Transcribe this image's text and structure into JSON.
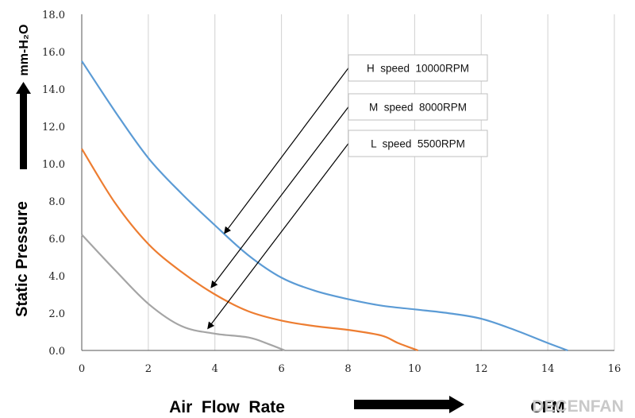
{
  "chart_data": {
    "type": "line",
    "xlim": [
      0,
      16
    ],
    "ylim": [
      0,
      18
    ],
    "x_ticks": [
      "0",
      "2",
      "4",
      "6",
      "8",
      "10",
      "12",
      "14",
      "16"
    ],
    "y_ticks": [
      "0.0",
      "2.0",
      "4.0",
      "6.0",
      "8.0",
      "10.0",
      "12.0",
      "14.0",
      "16.0",
      "18.0"
    ],
    "grid": "vertical",
    "xlabel": "Air  Flow  Rate",
    "x_unit": "CFM",
    "ylabel": "Static  Pressure",
    "y_unit": "mm-H₂O",
    "series": [
      {
        "name": "H  speed  10000RPM",
        "color": "#5b9bd5",
        "x": [
          0,
          1,
          2,
          3,
          4,
          5,
          6,
          7,
          8,
          9,
          10,
          11,
          12,
          13,
          14,
          14.6
        ],
        "y": [
          15.5,
          12.8,
          10.3,
          8.4,
          6.7,
          5.1,
          3.9,
          3.2,
          2.75,
          2.4,
          2.2,
          2.0,
          1.7,
          1.1,
          0.4,
          0.0
        ]
      },
      {
        "name": "M  speed  8000RPM",
        "color": "#ed7d31",
        "x": [
          0,
          1,
          2,
          3,
          4,
          5,
          6,
          7,
          8,
          9,
          9.5,
          10.1
        ],
        "y": [
          10.8,
          7.9,
          5.7,
          4.2,
          3.0,
          2.1,
          1.6,
          1.3,
          1.1,
          0.8,
          0.4,
          0.0
        ]
      },
      {
        "name": "L  speed  5500RPM",
        "color": "#a5a5a5",
        "x": [
          0,
          1,
          2,
          3,
          4,
          5,
          5.6,
          6.1
        ],
        "y": [
          6.2,
          4.3,
          2.5,
          1.3,
          0.9,
          0.7,
          0.35,
          0.0
        ]
      }
    ]
  },
  "arrow_targets": [
    {
      "label_index": 0,
      "x": 4.3,
      "y": 6.3
    },
    {
      "label_index": 1,
      "x": 3.9,
      "y": 3.4
    },
    {
      "label_index": 2,
      "x": 3.8,
      "y": 1.2
    }
  ],
  "watermark": "DECENFAN",
  "colors": {
    "axis": "#555555",
    "grid": "#d0d0d0",
    "arrow": "#000000",
    "box_border": "#bfbfbf"
  }
}
